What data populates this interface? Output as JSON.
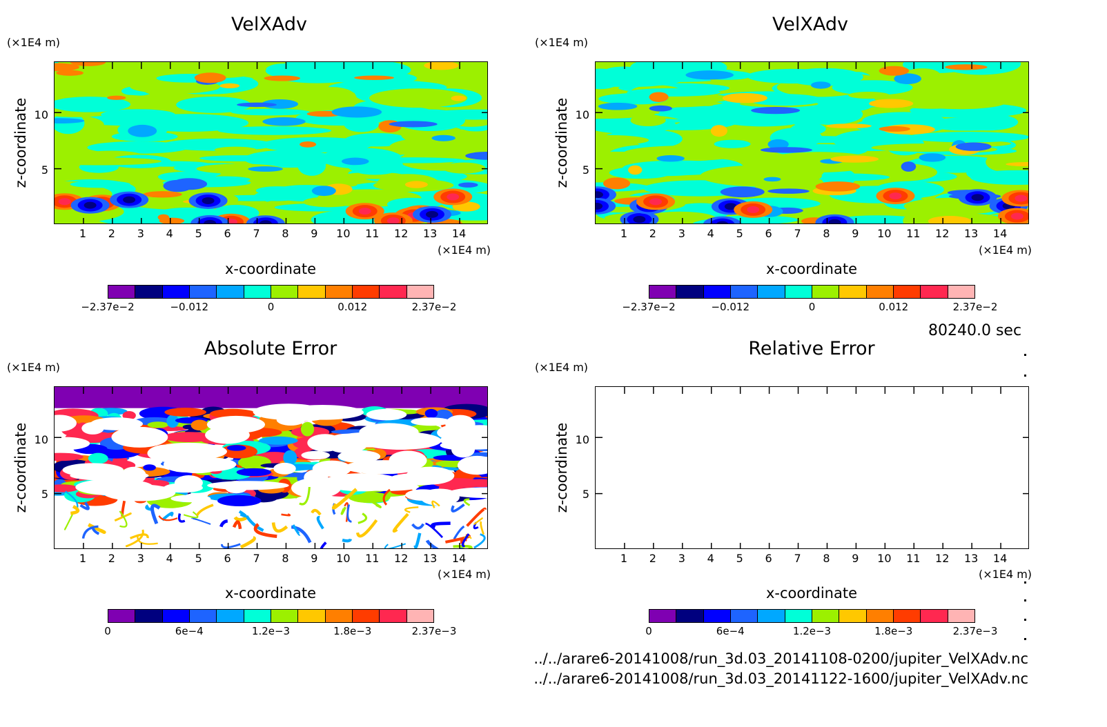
{
  "colors": {
    "palette": [
      "#7f00b2",
      "#00007f",
      "#0000ff",
      "#1e64ff",
      "#00a8ff",
      "#00ffd8",
      "#9cf000",
      "#ffc800",
      "#ff7f00",
      "#ff3c00",
      "#ff2850",
      "#ffb4b4"
    ],
    "background": "#ffffff"
  },
  "time_label": "80240.0 sec",
  "file_paths": [
    "../../arare6-20141008/run_3d.03_20141108-0200/jupiter_VelXAdv.nc",
    "../../arare6-20141008/run_3d.03_20141122-1600/jupiter_VelXAdv.nc"
  ],
  "chart_data": [
    {
      "type": "heatmap",
      "title": "VelXAdv",
      "xlabel": "x-coordinate",
      "ylabel": "z-coordinate",
      "x_unit": "(×1E4 m)",
      "y_unit": "(×1E4 m)",
      "xticks": [
        "1",
        "2",
        "3",
        "4",
        "5",
        "6",
        "7",
        "8",
        "9",
        "10",
        "11",
        "12",
        "13",
        "14"
      ],
      "yticks": [
        "5",
        "10"
      ],
      "xlim": [
        0,
        15
      ],
      "ylim": [
        0,
        14.5
      ],
      "colorbar_ticks": [
        "−2.37e−2",
        "−0.012",
        "0",
        "0.012",
        "2.37e−2"
      ],
      "colorbar_range": [
        -0.0237,
        0.0237
      ],
      "seed": 11
    },
    {
      "type": "heatmap",
      "title": "VelXAdv",
      "xlabel": "x-coordinate",
      "ylabel": "z-coordinate",
      "x_unit": "(×1E4 m)",
      "y_unit": "(×1E4 m)",
      "xticks": [
        "1",
        "2",
        "3",
        "4",
        "5",
        "6",
        "7",
        "8",
        "9",
        "10",
        "11",
        "12",
        "13",
        "14"
      ],
      "yticks": [
        "5",
        "10"
      ],
      "xlim": [
        0,
        15
      ],
      "ylim": [
        0,
        14.5
      ],
      "colorbar_ticks": [
        "−2.37e−2",
        "−0.012",
        "0",
        "0.012",
        "2.37e−2"
      ],
      "colorbar_range": [
        -0.0237,
        0.0237
      ],
      "seed": 23
    },
    {
      "type": "heatmap",
      "title": "Absolute Error",
      "xlabel": "x-coordinate",
      "ylabel": "z-coordinate",
      "x_unit": "(×1E4 m)",
      "y_unit": "(×1E4 m)",
      "xticks": [
        "1",
        "2",
        "3",
        "4",
        "5",
        "6",
        "7",
        "8",
        "9",
        "10",
        "11",
        "12",
        "13",
        "14"
      ],
      "yticks": [
        "5",
        "10"
      ],
      "xlim": [
        0,
        15
      ],
      "ylim": [
        0,
        14.5
      ],
      "colorbar_ticks": [
        "0",
        "6e−4",
        "1.2e−3",
        "1.8e−3",
        "2.37e−3"
      ],
      "colorbar_range": [
        0,
        0.00237
      ],
      "seed": 37
    },
    {
      "type": "heatmap",
      "title": "Relative Error",
      "xlabel": "x-coordinate",
      "ylabel": "z-coordinate",
      "x_unit": "(×1E4 m)",
      "y_unit": "(×1E4 m)",
      "xticks": [
        "1",
        "2",
        "3",
        "4",
        "5",
        "6",
        "7",
        "8",
        "9",
        "10",
        "11",
        "12",
        "13",
        "14"
      ],
      "yticks": [
        "5",
        "10"
      ],
      "xlim": [
        0,
        15
      ],
      "ylim": [
        0,
        14.5
      ],
      "colorbar_ticks": [
        "0",
        "6e−4",
        "1.2e−3",
        "1.8e−3",
        "2.37e−3"
      ],
      "colorbar_range": [
        0,
        0.00237
      ],
      "empty": true
    }
  ]
}
